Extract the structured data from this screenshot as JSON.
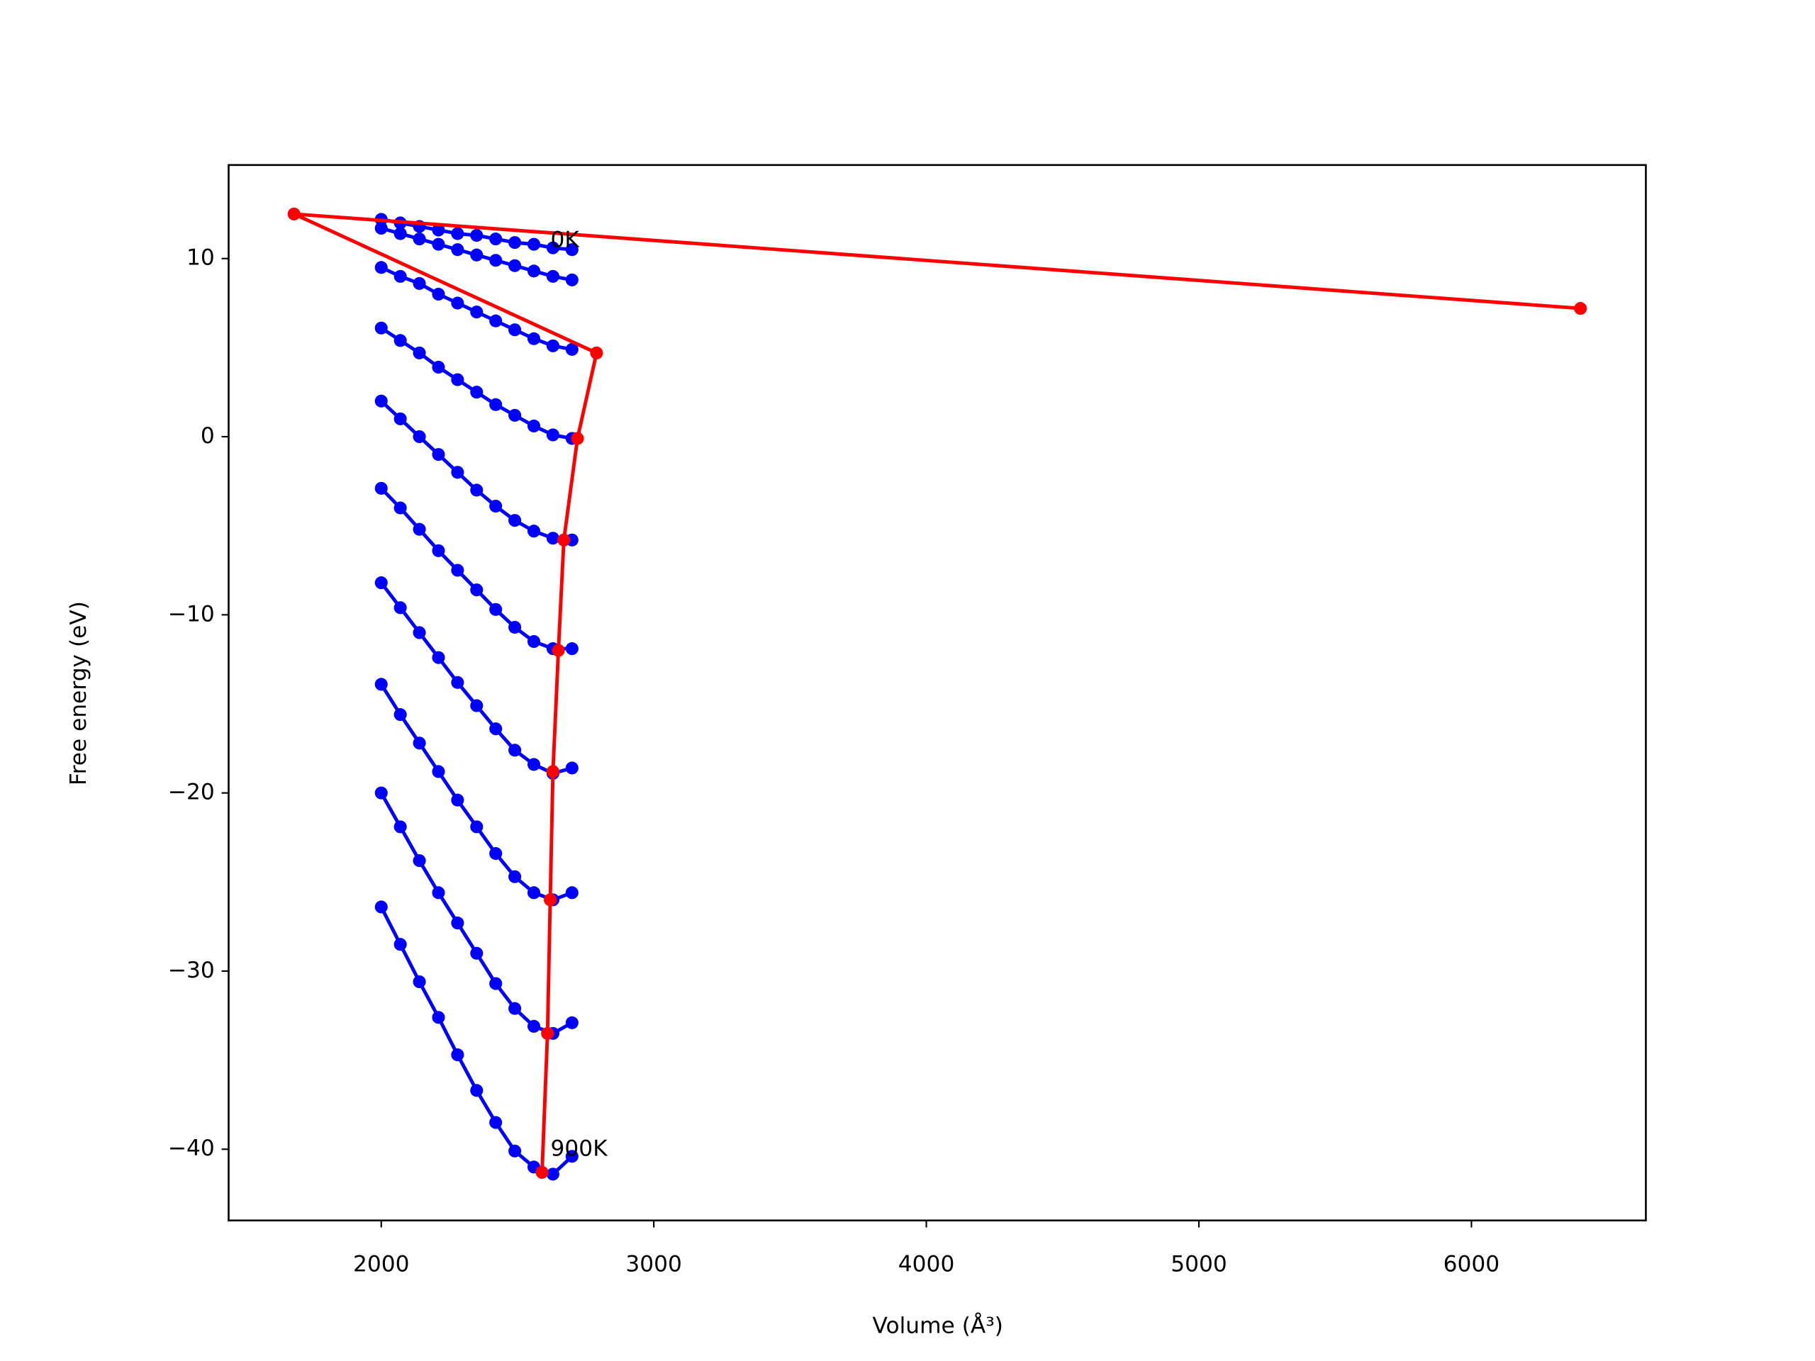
{
  "chart_data": {
    "type": "line",
    "x_label": "Volume (Å³)",
    "y_label": "Free energy (eV)",
    "xlim": [
      1440,
      6640
    ],
    "ylim": [
      -44,
      15.25
    ],
    "xticks": [
      2000,
      3000,
      4000,
      5000,
      6000
    ],
    "yticks": [
      {
        "value": -40,
        "label": "−40"
      },
      {
        "value": -30,
        "label": "−30"
      },
      {
        "value": -20,
        "label": "−20"
      },
      {
        "value": -10,
        "label": "−10"
      },
      0,
      10
    ],
    "annotations": [
      "0K",
      "900K"
    ],
    "x": [
      2000,
      2070,
      2140,
      2210,
      2280,
      2350,
      2420,
      2490,
      2560,
      2630,
      2700
    ],
    "series": [
      {
        "color": "#0000ff",
        "values": [
          12.2,
          12.0,
          11.8,
          11.6,
          11.4,
          11.3,
          11.1,
          10.9,
          10.8,
          10.6,
          10.5
        ]
      },
      {
        "color": "#0000ff",
        "values": [
          11.7,
          11.4,
          11.1,
          10.8,
          10.5,
          10.2,
          9.9,
          9.6,
          9.3,
          9.0,
          8.8
        ]
      },
      {
        "color": "#0000ff",
        "values": [
          9.5,
          9.0,
          8.6,
          8.0,
          7.5,
          7.0,
          6.5,
          6.0,
          5.5,
          5.1,
          4.9
        ]
      },
      {
        "color": "#0000ff",
        "values": [
          6.1,
          5.4,
          4.7,
          3.9,
          3.2,
          2.5,
          1.8,
          1.2,
          0.6,
          0.1,
          -0.1
        ]
      },
      {
        "color": "#0000ff",
        "values": [
          2.0,
          1.0,
          0.0,
          -1.0,
          -2.0,
          -3.0,
          -3.9,
          -4.7,
          -5.3,
          -5.7,
          -5.8
        ]
      },
      {
        "color": "#0000ff",
        "values": [
          -2.9,
          -4.0,
          -5.2,
          -6.4,
          -7.5,
          -8.6,
          -9.7,
          -10.7,
          -11.5,
          -11.9,
          -11.9
        ]
      },
      {
        "color": "#0000ff",
        "values": [
          -8.2,
          -9.6,
          -11.0,
          -12.4,
          -13.8,
          -15.1,
          -16.4,
          -17.6,
          -18.4,
          -18.9,
          -18.6
        ]
      },
      {
        "color": "#0000ff",
        "values": [
          -13.9,
          -15.6,
          -17.2,
          -18.8,
          -20.4,
          -21.9,
          -23.4,
          -24.7,
          -25.6,
          -26.0,
          -25.6
        ]
      },
      {
        "color": "#0000ff",
        "values": [
          -20.0,
          -21.9,
          -23.8,
          -25.6,
          -27.3,
          -29.0,
          -30.7,
          -32.1,
          -33.1,
          -33.5,
          -32.9
        ]
      },
      {
        "color": "#0000ff",
        "values": [
          -26.4,
          -28.5,
          -30.6,
          -32.6,
          -34.7,
          -36.7,
          -38.5,
          -40.1,
          -41.0,
          -41.4,
          -40.4
        ]
      },
      {
        "color": "#ff0000",
        "x": [
          6400,
          1680,
          2790,
          2720,
          2670,
          2650,
          2630,
          2620,
          2610,
          2590
        ],
        "values": [
          7.2,
          12.5,
          4.7,
          -0.1,
          -5.8,
          -12.0,
          -18.8,
          -26.0,
          -33.5,
          -41.3
        ]
      }
    ]
  }
}
